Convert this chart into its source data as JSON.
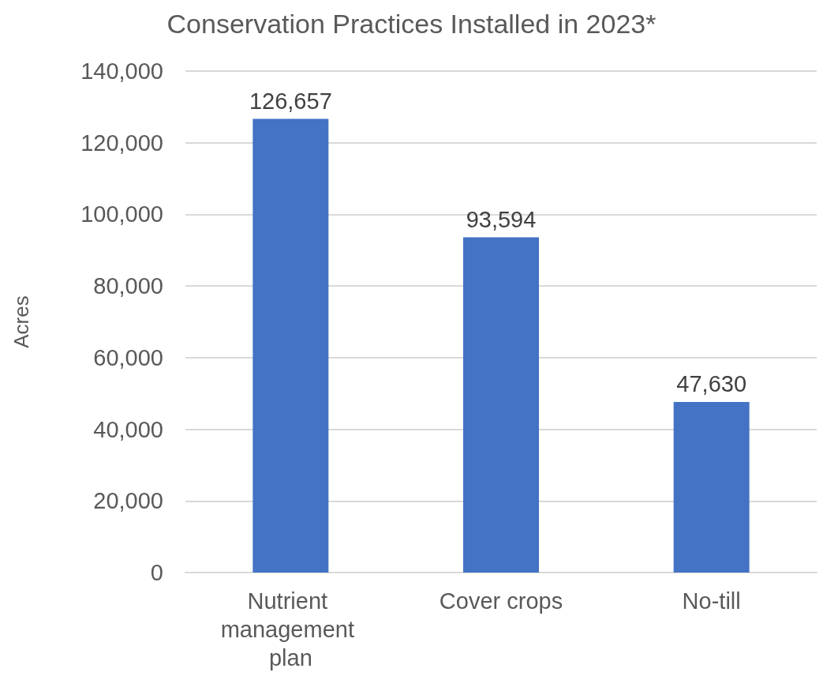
{
  "chart_data": {
    "type": "bar",
    "title": "Conservation Practices Installed in 2023*",
    "ylabel": "Acres",
    "categories": [
      "Nutrient management plan",
      "Cover crops",
      "No-till"
    ],
    "values": [
      126657,
      93594,
      47630
    ],
    "color": "#4472c4",
    "value_labels": [
      "126,657",
      "93,594",
      "47,630"
    ],
    "ylim": [
      0,
      140000
    ],
    "yticks": [
      0,
      {
        "value": 20000,
        "label": "20,000"
      },
      {
        "value": 40000,
        "label": "40,000"
      },
      {
        "value": 60000,
        "label": "60,000"
      },
      {
        "value": 80000,
        "label": "80,000"
      },
      {
        "value": 100000,
        "label": "100,000"
      },
      {
        "value": 120000,
        "label": "120,000"
      },
      {
        "value": 140000,
        "label": "140,000"
      }
    ],
    "grid": "y"
  }
}
